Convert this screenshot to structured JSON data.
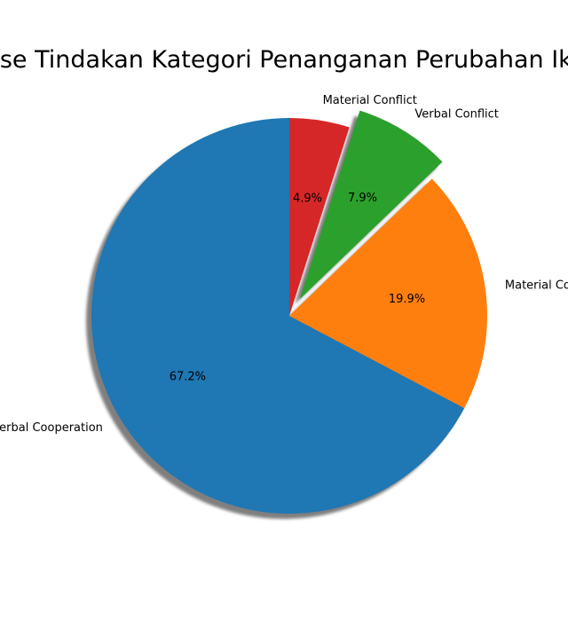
{
  "chart_data": {
    "type": "pie",
    "title": "Persentase Tindakan Kategori Penanganan Perubahan Iklim bulan",
    "start_angle_deg": 90,
    "direction": "counterclockwise",
    "shadow": true,
    "slices": [
      {
        "label": "Verbal Cooperation",
        "value": 67.2,
        "pct_label": "67.2%",
        "color": "#1f77b4",
        "explode": 0
      },
      {
        "label": "Material Cooperation",
        "value": 19.9,
        "pct_label": "19.9%",
        "color": "#ff7f0e",
        "explode": 0
      },
      {
        "label": "Verbal Conflict",
        "value": 7.9,
        "pct_label": "7.9%",
        "color": "#2ca02c",
        "explode": 0.1
      },
      {
        "label": "Material Conflict",
        "value": 4.9,
        "pct_label": "4.9%",
        "color": "#d62728",
        "explode": 0
      }
    ]
  }
}
